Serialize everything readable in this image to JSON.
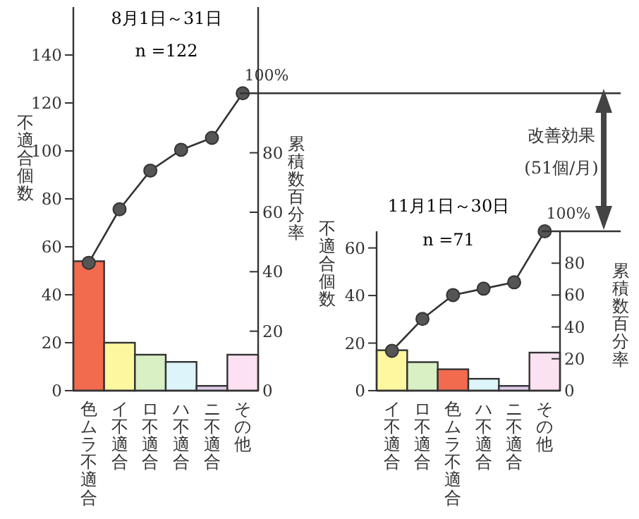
{
  "chart_data": [
    {
      "type": "bar",
      "title": "8月1日～31日",
      "subtitle": "n =122",
      "ylabel": "不適合個数",
      "y2label": "累積数百分率",
      "categories": [
        "色ムラ不適合",
        "イ不適合",
        "ロ不適合",
        "ハ不適合",
        "ニ不適合",
        "その他"
      ],
      "series": [
        {
          "type": "bar",
          "colors": [
            "#f26b4f",
            "#fdf7a0",
            "#d9efc4",
            "#dcf4fa",
            "#dccbe8",
            "#fbe1f1"
          ],
          "values": [
            54,
            20,
            15,
            12,
            2,
            15
          ]
        },
        {
          "type": "line",
          "axis": "y2",
          "color": "#333333",
          "values": [
            43,
            61,
            74,
            81,
            85,
            100
          ]
        }
      ],
      "ylim": [
        0,
        160
      ],
      "yticks": [
        0,
        20,
        40,
        60,
        80,
        100,
        120,
        140
      ],
      "y2lim": [
        0,
        129
      ],
      "y2ticks": [
        0,
        20,
        40,
        60,
        80
      ],
      "marker": "circle",
      "grid": false,
      "ref_lines": [
        {
          "axis": "y2",
          "value": 100,
          "label": "100%"
        }
      ]
    },
    {
      "type": "bar",
      "title": "11月1日～30日",
      "subtitle": "n =71",
      "ylabel": "不適合個数",
      "y2label": "累積数百分率",
      "categories": [
        "イ不適合",
        "ロ不適合",
        "色ムラ不適合",
        "ハ不適合",
        "ニ不適合",
        "その他"
      ],
      "series": [
        {
          "type": "bar",
          "colors": [
            "#fdf7a0",
            "#d9efc4",
            "#f26b4f",
            "#dcf4fa",
            "#dccbe8",
            "#fbe1f1"
          ],
          "values": [
            17,
            12,
            9,
            5,
            2,
            16
          ]
        },
        {
          "type": "line",
          "axis": "y2",
          "color": "#333333",
          "values": [
            25,
            45,
            60,
            64,
            68,
            100
          ]
        }
      ],
      "ylim": [
        0,
        67
      ],
      "yticks": [
        0,
        20,
        40,
        60
      ],
      "y2lim": [
        0,
        100
      ],
      "y2ticks": [
        0,
        20,
        40,
        60,
        80
      ],
      "marker": "circle",
      "grid": false,
      "ref_lines": [
        {
          "axis": "y2",
          "value": 100,
          "label": "100%"
        }
      ],
      "annotations": [
        "改善効果",
        "(51個/月)"
      ]
    }
  ]
}
